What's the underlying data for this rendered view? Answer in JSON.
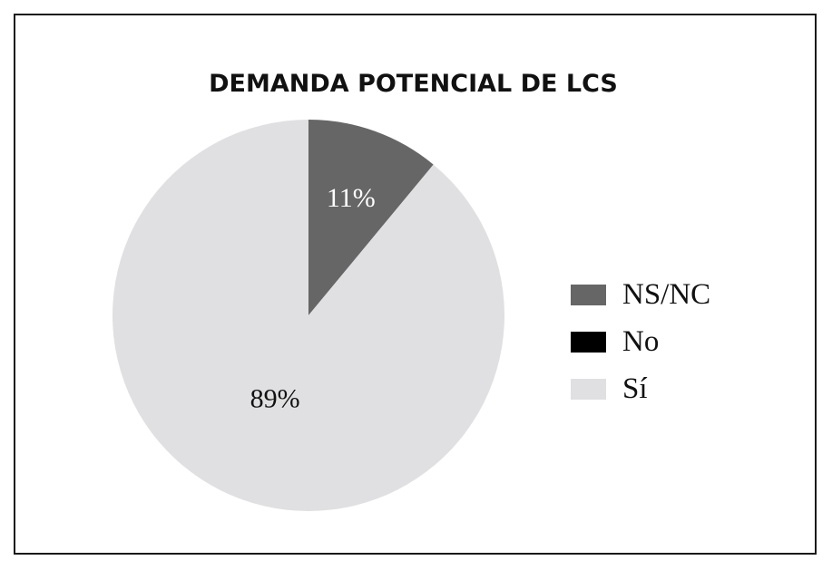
{
  "chart_data": {
    "type": "pie",
    "title": "DEMANDA POTENCIAL DE LCS",
    "categories": [
      "NS/NC",
      "No",
      "Sí"
    ],
    "values": [
      11,
      0,
      89
    ],
    "labels": [
      "11%",
      "",
      "89%"
    ],
    "colors": [
      "#666666",
      "#000000",
      "#e0e0e2"
    ],
    "label_colors": [
      "#ffffff",
      "#ffffff",
      "#111111"
    ],
    "legend_position": "right"
  }
}
